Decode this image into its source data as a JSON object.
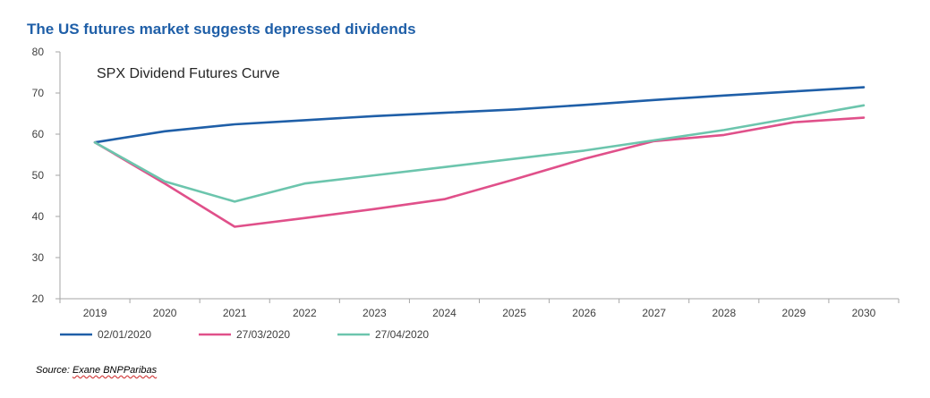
{
  "heading": "The US futures market suggests depressed dividends",
  "source": {
    "prefix": "Source: ",
    "name": "Exane BNPParibas"
  },
  "colors": {
    "heading": "#1f5fa8",
    "axis": "#a6a6a6",
    "tick_text": "#404040"
  },
  "chart_data": {
    "type": "line",
    "title": "SPX Dividend Futures Curve",
    "xlabel": "",
    "ylabel": "",
    "ylim": [
      20,
      80
    ],
    "yticks": [
      20,
      30,
      40,
      50,
      60,
      70,
      80
    ],
    "grid": false,
    "legend_position": "bottom-left",
    "categories": [
      "2019",
      "2020",
      "2021",
      "2022",
      "2023",
      "2024",
      "2025",
      "2026",
      "2027",
      "2028",
      "2029",
      "2030"
    ],
    "series": [
      {
        "name": "02/01/2020",
        "color": "#1f5fa8",
        "values": [
          58,
          60.7,
          62.4,
          63.4,
          64.4,
          65.2,
          66,
          67.1,
          68.3,
          69.4,
          70.4,
          71.4
        ]
      },
      {
        "name": "27/03/2020",
        "color": "#e0508a",
        "values": [
          58,
          48,
          37.5,
          39.6,
          41.8,
          44.2,
          49,
          54,
          58.3,
          59.8,
          62.9,
          64
        ]
      },
      {
        "name": "27/04/2020",
        "color": "#6cc5ad",
        "values": [
          58,
          48.5,
          43.6,
          48,
          50,
          52,
          54,
          56,
          58.5,
          61,
          64,
          67
        ]
      }
    ]
  }
}
